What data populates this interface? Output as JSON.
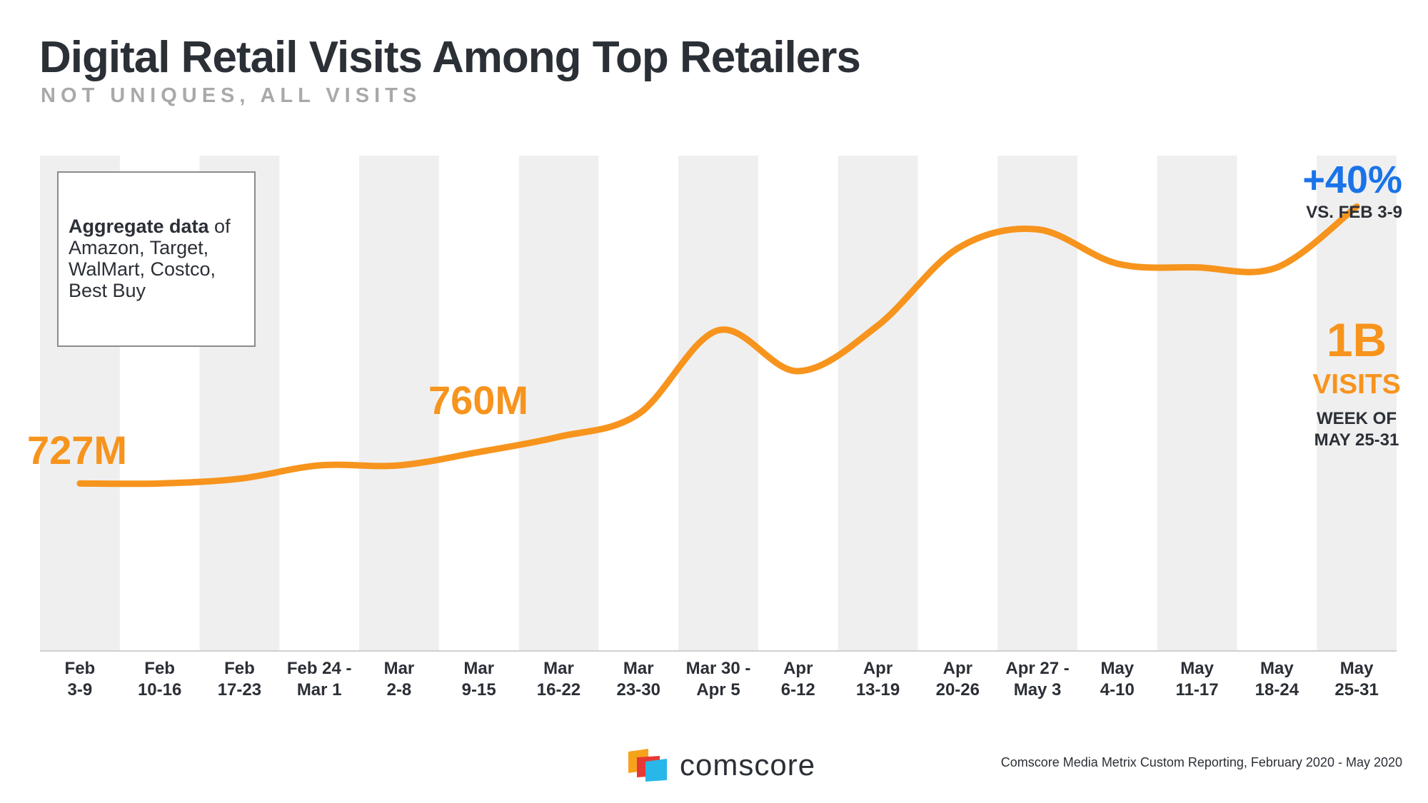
{
  "header": {
    "title": "Digital Retail Visits Among Top Retailers",
    "subtitle": "NOT UNIQUES, ALL VISITS"
  },
  "note": {
    "bold": "Aggregate data",
    "rest": " of Amazon, Target, WalMart, Costco, Best Buy"
  },
  "callouts": {
    "start_label": "727M",
    "mid_label": "760M",
    "change_pct": "+40%",
    "change_vs": "VS. FEB 3-9",
    "end_value": "1B",
    "end_unit": "VISITS",
    "end_week_line1": "WEEK OF",
    "end_week_line2": "MAY 25-31"
  },
  "footer": {
    "logo_text": "comscore",
    "source": "Comscore Media Metrix Custom Reporting, February 2020 - May 2020"
  },
  "colors": {
    "line": "#f7941d",
    "band": "#efefef",
    "accent_blue": "#1a73e8",
    "text_dark": "#2b2f36"
  },
  "chart_data": {
    "type": "line",
    "title": "Digital Retail Visits Among Top Retailers",
    "subtitle": "NOT UNIQUES, ALL VISITS",
    "units": "visits",
    "grid": false,
    "alternating_column_bands": true,
    "categories": [
      [
        "Feb",
        "3-9"
      ],
      [
        "Feb",
        "10-16"
      ],
      [
        "Feb",
        "17-23"
      ],
      [
        "Feb 24 -",
        "Mar 1"
      ],
      [
        "Mar",
        "2-8"
      ],
      [
        "Mar",
        "9-15"
      ],
      [
        "Mar",
        "16-22"
      ],
      [
        "Mar",
        "23-30"
      ],
      [
        "Mar 30 -",
        "Apr 5"
      ],
      [
        "Apr",
        "6-12"
      ],
      [
        "Apr",
        "13-19"
      ],
      [
        "Apr",
        "20-26"
      ],
      [
        "Apr 27 -",
        "May 3"
      ],
      [
        "May",
        "4-10"
      ],
      [
        "May",
        "11-17"
      ],
      [
        "May",
        "18-24"
      ],
      [
        "May",
        "25-31"
      ]
    ],
    "series": [
      {
        "values": [
          727,
          727,
          732,
          746,
          746,
          760,
          776,
          800,
          888,
          845,
          893,
          974,
          994,
          958,
          954,
          954,
          1018
        ]
      }
    ],
    "value_units": "millions of visits",
    "ylim": [
      560,
      1055
    ]
  }
}
